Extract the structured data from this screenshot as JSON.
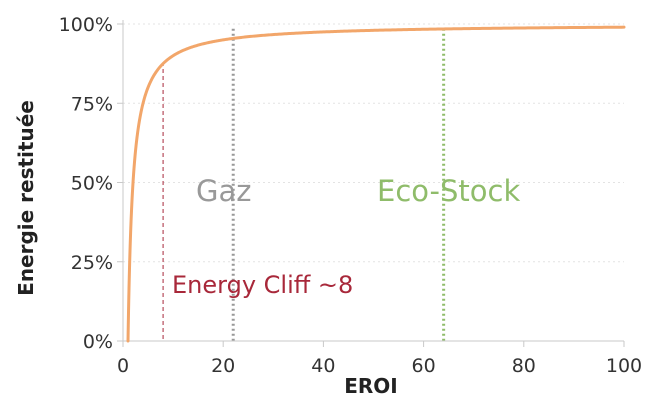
{
  "chart_data": {
    "type": "line",
    "xlabel": "EROI",
    "ylabel": "Energie restituée",
    "xlim": [
      0,
      100
    ],
    "ylim": [
      0,
      100
    ],
    "x_ticks": [
      {
        "value": 0,
        "label": "0"
      },
      {
        "value": 20,
        "label": "20"
      },
      {
        "value": 40,
        "label": "40"
      },
      {
        "value": 60,
        "label": "60"
      },
      {
        "value": 80,
        "label": "80"
      },
      {
        "value": 100,
        "label": "100"
      }
    ],
    "y_ticks": [
      {
        "value": 0,
        "label": "0%"
      },
      {
        "value": 25,
        "label": "25%"
      },
      {
        "value": 50,
        "label": "50%"
      },
      {
        "value": 75,
        "label": "75%"
      },
      {
        "value": 100,
        "label": "100%"
      }
    ],
    "grid": true,
    "series": [
      {
        "color": "#f2a66a",
        "function": "1 - 1/x",
        "x_start": 1,
        "x_end": 100
      }
    ],
    "reference_lines": [
      {
        "name": "energy-cliff",
        "x": 8,
        "color": "#a8283a",
        "style": "dashed",
        "label": "Energy Cliff ~8",
        "label_size": "small"
      },
      {
        "name": "gaz",
        "x": 22,
        "color": "#999999",
        "style": "dotted",
        "label": "Gaz",
        "label_size": "big"
      },
      {
        "name": "eco-stock",
        "x": 64,
        "color": "#8fbc6a",
        "style": "dotted",
        "label": "Eco-Stock",
        "label_size": "big"
      }
    ]
  }
}
